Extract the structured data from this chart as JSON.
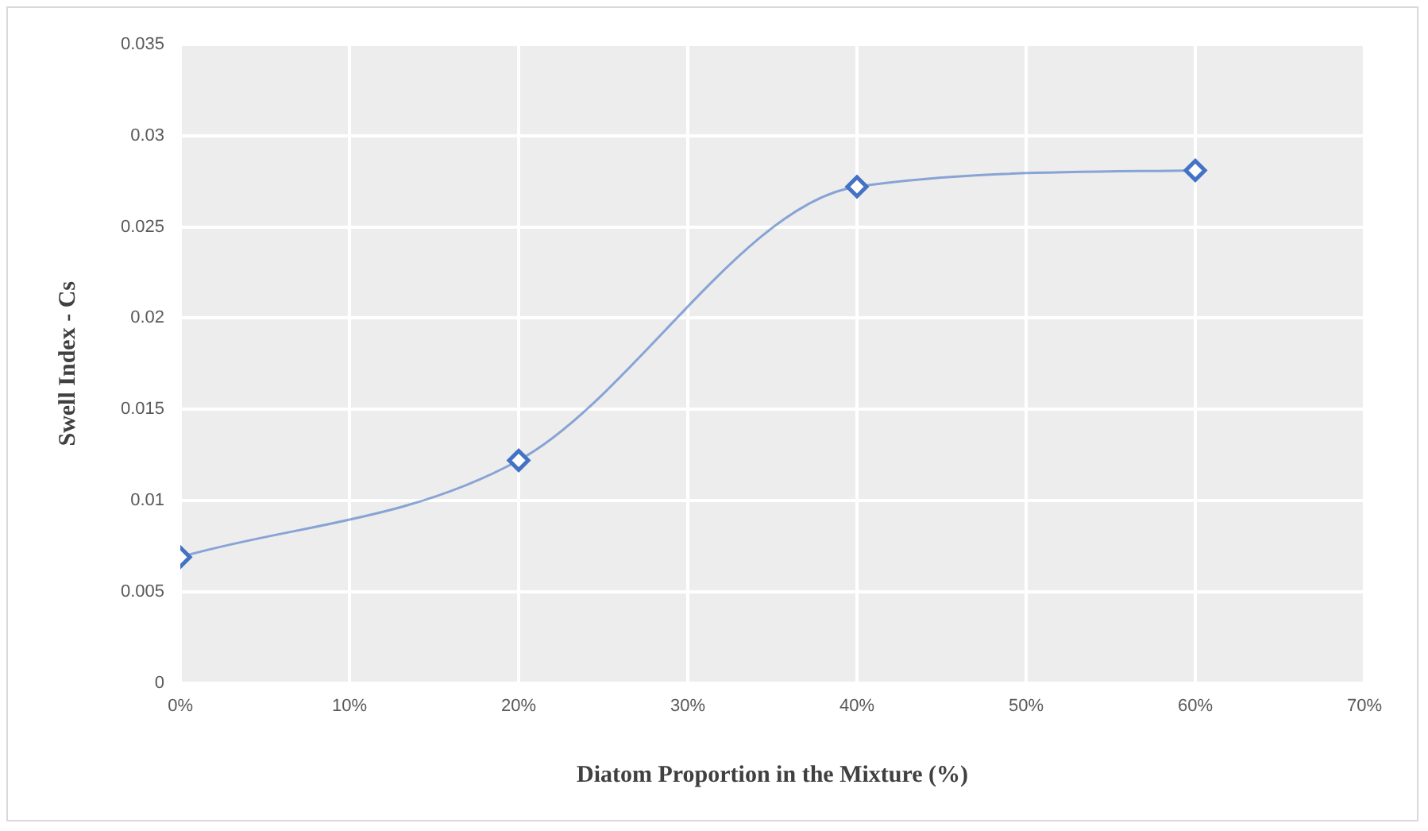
{
  "chart_data": {
    "type": "line",
    "xlabel": "Diatom Proportion in the Mixture (%)",
    "ylabel": "Swell Index - Cs",
    "x": [
      0,
      20,
      40,
      60
    ],
    "series": [
      {
        "color": "#4472c4",
        "values": [
          0.0069,
          0.0122,
          0.0272,
          0.0281
        ]
      }
    ],
    "xlim": [
      0,
      70
    ],
    "xticks": [
      {
        "value": 0,
        "label": "0%"
      },
      {
        "value": 10,
        "label": "10%"
      },
      {
        "value": 20,
        "label": "20%"
      },
      {
        "value": 30,
        "label": "30%"
      },
      {
        "value": 40,
        "label": "40%"
      },
      {
        "value": 50,
        "label": "50%"
      },
      {
        "value": 60,
        "label": "60%"
      },
      {
        "value": 70,
        "label": "70%"
      }
    ],
    "ylim": [
      0,
      0.035
    ],
    "yticks": [
      0,
      0.005,
      0.01,
      0.015,
      0.02,
      0.025,
      0.03,
      0.035
    ],
    "grid": true,
    "marker": "diamond",
    "line_style": "solid"
  }
}
